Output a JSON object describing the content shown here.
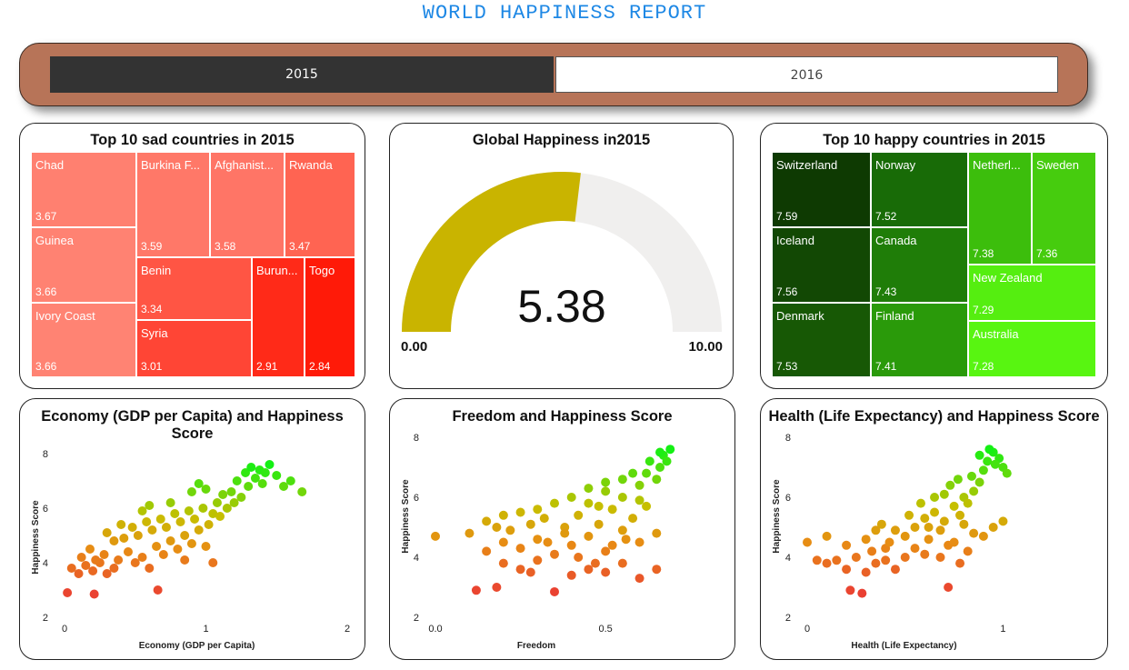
{
  "page_title": "WORLD HAPPINESS REPORT",
  "slicer": {
    "options": [
      "2015",
      "2016"
    ],
    "selected": "2015"
  },
  "sad": {
    "title": "Top 10 sad countries in 2015",
    "items": [
      {
        "name": "Chad",
        "value": "3.67"
      },
      {
        "name": "Guinea",
        "value": "3.66"
      },
      {
        "name": "Ivory Coast",
        "value": "3.66"
      },
      {
        "name": "Burkina F...",
        "value": "3.59"
      },
      {
        "name": "Afghanist...",
        "value": "3.58"
      },
      {
        "name": "Rwanda",
        "value": "3.47"
      },
      {
        "name": "Benin",
        "value": "3.34"
      },
      {
        "name": "Syria",
        "value": "3.01"
      },
      {
        "name": "Burun...",
        "value": "2.91"
      },
      {
        "name": "Togo",
        "value": "2.84"
      }
    ]
  },
  "gauge": {
    "title": "Global Happiness in2015",
    "value": 5.38,
    "value_label": "5.38",
    "min": 0,
    "max": 10,
    "min_label": "0.00",
    "max_label": "10.00",
    "fill_color": "#c9b400",
    "track_color": "#f0efee"
  },
  "happy": {
    "title": "Top 10 happy countries in 2015",
    "items": [
      {
        "name": "Switzerland",
        "value": "7.59"
      },
      {
        "name": "Iceland",
        "value": "7.56"
      },
      {
        "name": "Denmark",
        "value": "7.53"
      },
      {
        "name": "Norway",
        "value": "7.52"
      },
      {
        "name": "Canada",
        "value": "7.43"
      },
      {
        "name": "Finland",
        "value": "7.41"
      },
      {
        "name": "Netherl...",
        "value": "7.38"
      },
      {
        "name": "Sweden",
        "value": "7.36"
      },
      {
        "name": "New Zealand",
        "value": "7.29"
      },
      {
        "name": "Australia",
        "value": "7.28"
      }
    ]
  },
  "chart_data": [
    {
      "type": "scatter",
      "title": "Economy (GDP per Capita) and Happiness Score",
      "xlabel": "Economy (GDP per Capita)",
      "ylabel": "Happiness Score",
      "xlim": [
        0,
        2
      ],
      "ylim": [
        2,
        8
      ],
      "xticks": [
        "0",
        "1",
        "2"
      ],
      "yticks": [
        "2",
        "4",
        "6",
        "8"
      ],
      "points": [
        [
          0.02,
          2.9
        ],
        [
          0.21,
          2.85
        ],
        [
          0.66,
          3.0
        ],
        [
          0.05,
          3.8
        ],
        [
          0.1,
          3.6
        ],
        [
          0.15,
          3.9
        ],
        [
          0.2,
          3.7
        ],
        [
          0.25,
          4.0
        ],
        [
          0.3,
          3.6
        ],
        [
          0.35,
          3.8
        ],
        [
          0.12,
          4.2
        ],
        [
          0.18,
          4.5
        ],
        [
          0.28,
          4.3
        ],
        [
          0.38,
          4.1
        ],
        [
          0.45,
          4.4
        ],
        [
          0.5,
          4.0
        ],
        [
          0.55,
          4.2
        ],
        [
          0.6,
          3.8
        ],
        [
          0.65,
          4.6
        ],
        [
          0.7,
          4.3
        ],
        [
          0.75,
          4.8
        ],
        [
          0.8,
          4.5
        ],
        [
          0.85,
          5.0
        ],
        [
          0.9,
          4.7
        ],
        [
          0.95,
          5.2
        ],
        [
          0.42,
          4.9
        ],
        [
          0.48,
          5.3
        ],
        [
          0.52,
          5.0
        ],
        [
          0.58,
          5.5
        ],
        [
          0.62,
          5.2
        ],
        [
          0.68,
          5.6
        ],
        [
          0.72,
          5.3
        ],
        [
          0.78,
          5.8
        ],
        [
          0.82,
          5.5
        ],
        [
          0.88,
          5.9
        ],
        [
          0.92,
          5.6
        ],
        [
          0.98,
          6.0
        ],
        [
          1.02,
          5.4
        ],
        [
          1.05,
          5.8
        ],
        [
          1.08,
          6.2
        ],
        [
          1.1,
          5.7
        ],
        [
          1.12,
          6.5
        ],
        [
          1.15,
          6.0
        ],
        [
          1.18,
          6.6
        ],
        [
          1.2,
          6.2
        ],
        [
          1.22,
          7.0
        ],
        [
          1.25,
          6.4
        ],
        [
          1.28,
          7.3
        ],
        [
          1.3,
          6.8
        ],
        [
          1.32,
          7.5
        ],
        [
          1.35,
          7.1
        ],
        [
          1.38,
          7.4
        ],
        [
          1.4,
          6.9
        ],
        [
          1.42,
          7.3
        ],
        [
          1.45,
          7.6
        ],
        [
          1.5,
          7.2
        ],
        [
          1.55,
          6.8
        ],
        [
          1.6,
          7.0
        ],
        [
          1.68,
          6.6
        ],
        [
          0.9,
          6.6
        ],
        [
          0.95,
          6.9
        ],
        [
          1.0,
          6.7
        ],
        [
          0.6,
          6.1
        ],
        [
          0.75,
          6.2
        ],
        [
          0.55,
          5.9
        ],
        [
          0.4,
          5.4
        ],
        [
          0.3,
          5.1
        ],
        [
          0.35,
          4.8
        ],
        [
          0.22,
          4.1
        ],
        [
          1.05,
          4.0
        ],
        [
          0.85,
          4.1
        ],
        [
          1.0,
          4.6
        ]
      ]
    },
    {
      "type": "scatter",
      "title": "Freedom and Happiness Score",
      "xlabel": "Freedom",
      "ylabel": "Happiness Score",
      "xlim": [
        0,
        0.7
      ],
      "ylim": [
        2,
        8
      ],
      "xticks": [
        "0.0",
        "0.5"
      ],
      "yticks": [
        "2",
        "4",
        "6",
        "8"
      ],
      "points": [
        [
          0.0,
          4.7
        ],
        [
          0.12,
          2.9
        ],
        [
          0.18,
          3.0
        ],
        [
          0.35,
          2.85
        ],
        [
          0.2,
          3.8
        ],
        [
          0.25,
          3.6
        ],
        [
          0.3,
          3.9
        ],
        [
          0.28,
          3.5
        ],
        [
          0.4,
          3.4
        ],
        [
          0.45,
          3.6
        ],
        [
          0.5,
          3.5
        ],
        [
          0.55,
          3.8
        ],
        [
          0.6,
          3.3
        ],
        [
          0.65,
          3.6
        ],
        [
          0.15,
          4.2
        ],
        [
          0.2,
          4.5
        ],
        [
          0.25,
          4.3
        ],
        [
          0.3,
          4.6
        ],
        [
          0.35,
          4.1
        ],
        [
          0.4,
          4.4
        ],
        [
          0.45,
          4.7
        ],
        [
          0.5,
          4.2
        ],
        [
          0.55,
          4.9
        ],
        [
          0.6,
          4.5
        ],
        [
          0.65,
          4.8
        ],
        [
          0.1,
          4.8
        ],
        [
          0.18,
          5.0
        ],
        [
          0.22,
          4.9
        ],
        [
          0.28,
          5.1
        ],
        [
          0.32,
          5.3
        ],
        [
          0.38,
          5.0
        ],
        [
          0.42,
          5.4
        ],
        [
          0.48,
          5.1
        ],
        [
          0.52,
          5.6
        ],
        [
          0.58,
          5.3
        ],
        [
          0.62,
          5.7
        ],
        [
          0.35,
          5.8
        ],
        [
          0.4,
          6.0
        ],
        [
          0.45,
          5.8
        ],
        [
          0.5,
          6.2
        ],
        [
          0.55,
          6.0
        ],
        [
          0.6,
          6.4
        ],
        [
          0.62,
          6.8
        ],
        [
          0.65,
          6.6
        ],
        [
          0.66,
          7.0
        ],
        [
          0.67,
          7.4
        ],
        [
          0.68,
          7.2
        ],
        [
          0.69,
          7.6
        ],
        [
          0.66,
          7.5
        ],
        [
          0.63,
          7.2
        ],
        [
          0.58,
          6.8
        ],
        [
          0.55,
          6.6
        ],
        [
          0.5,
          6.5
        ],
        [
          0.45,
          6.3
        ],
        [
          0.3,
          5.6
        ],
        [
          0.25,
          5.5
        ],
        [
          0.2,
          5.4
        ],
        [
          0.15,
          5.2
        ],
        [
          0.42,
          4.0
        ],
        [
          0.47,
          3.8
        ],
        [
          0.52,
          4.4
        ],
        [
          0.56,
          4.6
        ],
        [
          0.38,
          4.8
        ],
        [
          0.33,
          4.5
        ],
        [
          0.6,
          5.9
        ],
        [
          0.48,
          5.7
        ]
      ]
    },
    {
      "type": "scatter",
      "title": "Health (Life Expectancy) and Happiness Score",
      "xlabel": "Health (Life Expectancy)",
      "ylabel": "Happiness Score",
      "xlim": [
        0,
        1.1
      ],
      "ylim": [
        2,
        8
      ],
      "xticks": [
        "0",
        "1"
      ],
      "yticks": [
        "2",
        "4",
        "6",
        "8"
      ],
      "points": [
        [
          0.0,
          4.5
        ],
        [
          0.05,
          3.9
        ],
        [
          0.1,
          3.8
        ],
        [
          0.15,
          3.9
        ],
        [
          0.2,
          3.6
        ],
        [
          0.22,
          2.9
        ],
        [
          0.28,
          2.8
        ],
        [
          0.3,
          3.5
        ],
        [
          0.35,
          3.8
        ],
        [
          0.4,
          3.9
        ],
        [
          0.45,
          3.6
        ],
        [
          0.5,
          4.0
        ],
        [
          0.55,
          4.3
        ],
        [
          0.6,
          4.1
        ],
        [
          0.68,
          4.0
        ],
        [
          0.72,
          4.4
        ],
        [
          0.78,
          3.8
        ],
        [
          0.82,
          4.2
        ],
        [
          0.85,
          4.8
        ],
        [
          0.9,
          4.7
        ],
        [
          0.95,
          5.0
        ],
        [
          1.0,
          5.2
        ],
        [
          0.72,
          3.0
        ],
        [
          0.1,
          4.7
        ],
        [
          0.2,
          4.4
        ],
        [
          0.3,
          4.6
        ],
        [
          0.4,
          4.3
        ],
        [
          0.5,
          4.7
        ],
        [
          0.55,
          5.0
        ],
        [
          0.6,
          5.3
        ],
        [
          0.62,
          5.0
        ],
        [
          0.65,
          5.5
        ],
        [
          0.7,
          5.2
        ],
        [
          0.75,
          5.7
        ],
        [
          0.78,
          5.4
        ],
        [
          0.8,
          6.0
        ],
        [
          0.82,
          5.8
        ],
        [
          0.85,
          6.2
        ],
        [
          0.88,
          6.5
        ],
        [
          0.9,
          6.9
        ],
        [
          0.92,
          7.2
        ],
        [
          0.95,
          7.5
        ],
        [
          0.98,
          7.3
        ],
        [
          1.0,
          7.0
        ],
        [
          1.02,
          6.8
        ],
        [
          0.88,
          7.4
        ],
        [
          0.93,
          7.6
        ],
        [
          0.96,
          7.1
        ],
        [
          0.84,
          6.7
        ],
        [
          0.7,
          6.1
        ],
        [
          0.65,
          6.0
        ],
        [
          0.58,
          5.8
        ],
        [
          0.52,
          5.4
        ],
        [
          0.45,
          4.9
        ],
        [
          0.38,
          5.1
        ],
        [
          0.33,
          4.2
        ],
        [
          0.25,
          4.0
        ],
        [
          0.62,
          4.6
        ],
        [
          0.68,
          4.9
        ],
        [
          0.75,
          4.5
        ],
        [
          0.8,
          5.1
        ],
        [
          0.35,
          4.9
        ],
        [
          0.42,
          4.5
        ],
        [
          0.73,
          6.4
        ],
        [
          0.77,
          6.6
        ]
      ]
    }
  ]
}
